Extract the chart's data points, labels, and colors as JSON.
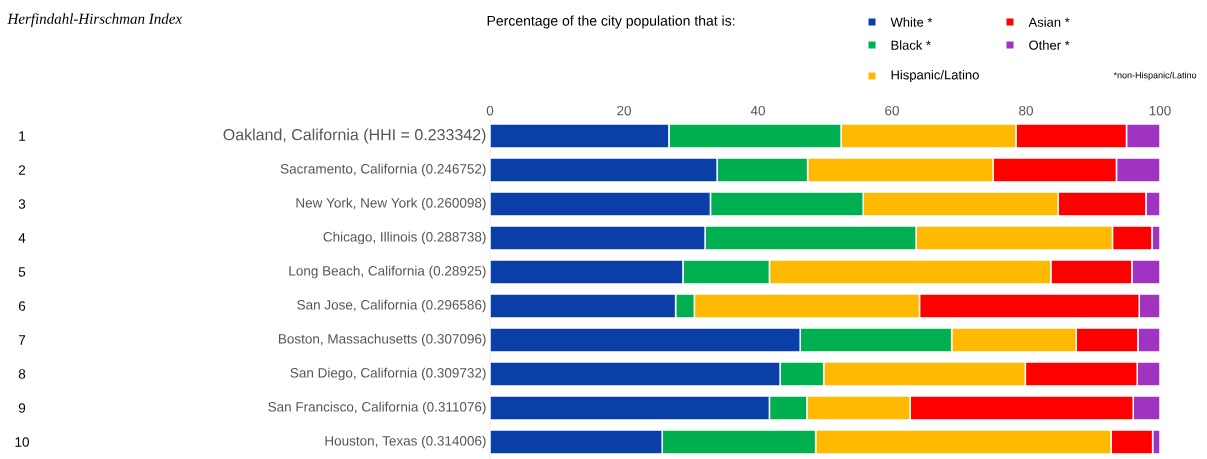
{
  "chart_data": {
    "type": "bar",
    "orientation": "horizontal",
    "stacked": true,
    "title": "Herfindahl-Hirschman Index",
    "legend_title": "Percentage of the city population that is:",
    "legend": "top right",
    "categories": [
      "Oakland, California (HHI = 0.233342)",
      "Sacramento, California (0.246752)",
      "New York, New York (0.260098)",
      "Chicago, Illinois (0.288738)",
      "Long Beach, California (0.28925)",
      "San Jose, California (0.296586)",
      "Boston, Massachusetts (0.307096)",
      "San Diego, California (0.309732)",
      "San Francisco, California (0.311076)",
      "Houston, Texas (0.314006)"
    ],
    "series": [
      {
        "name": "White *",
        "color": "#0b3fa8",
        "values": [
          26.7,
          33.9,
          32.9,
          32.1,
          28.8,
          27.7,
          46.3,
          43.3,
          41.7,
          25.7
        ]
      },
      {
        "name": "Black *",
        "color": "#00b050",
        "values": [
          25.7,
          13.5,
          22.8,
          31.5,
          12.9,
          2.8,
          22.6,
          6.5,
          5.6,
          22.9
        ]
      },
      {
        "name": "Hispanic/Latino",
        "color": "#ffb900",
        "values": [
          26.1,
          27.7,
          29.1,
          29.3,
          42.0,
          33.6,
          18.6,
          30.1,
          15.4,
          44.1
        ]
      },
      {
        "name": "Asian *",
        "color": "#ff0000",
        "values": [
          16.5,
          18.4,
          13.1,
          5.9,
          12.1,
          32.8,
          9.2,
          16.7,
          33.3,
          6.2
        ]
      },
      {
        "name": "Other *",
        "color": "#a033c0",
        "values": [
          5.0,
          6.5,
          2.1,
          1.2,
          4.2,
          3.1,
          3.3,
          3.4,
          4.0,
          1.1
        ]
      }
    ],
    "xlim": [
      0,
      100
    ],
    "xticks": [
      0,
      20,
      40,
      60,
      80,
      100
    ],
    "annotations": [
      "1",
      "2",
      "3",
      "4",
      "5",
      "6",
      "7",
      "8",
      "9",
      "10",
      "*non-Hispanic/Latino"
    ]
  }
}
